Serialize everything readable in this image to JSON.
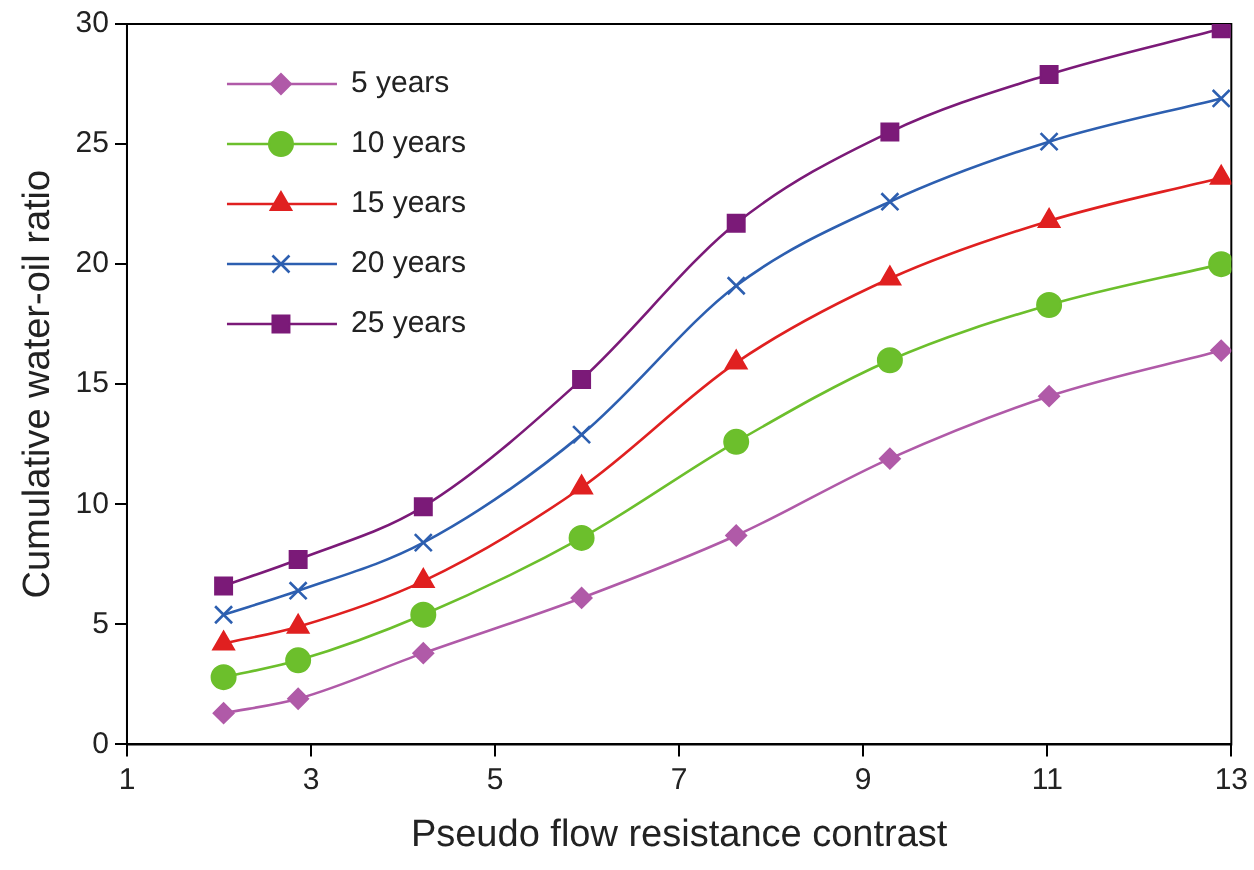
{
  "chart_data": {
    "type": "line",
    "xlabel": "Pseudo flow resistance contrast",
    "ylabel": "Cumulative water-oil ratio",
    "xlim": [
      1,
      13
    ],
    "xticks": [
      1,
      3,
      5,
      7,
      9,
      11,
      13
    ],
    "ylim": [
      0,
      30
    ],
    "yticks": [
      0,
      5,
      10,
      15,
      20,
      25,
      30
    ],
    "grid": false,
    "legend": "top left",
    "line_style": "solid",
    "x": [
      2.05,
      2.86,
      4.22,
      5.94,
      7.62,
      9.29,
      11.02,
      12.89
    ],
    "series": [
      {
        "name": "5 years",
        "color": "#b05aa8",
        "marker": "diamond",
        "values": [
          1.3,
          1.9,
          3.8,
          6.1,
          8.7,
          11.9,
          14.5,
          16.4
        ]
      },
      {
        "name": "10 years",
        "color": "#6cbf2c",
        "marker": "circle",
        "values": [
          2.8,
          3.5,
          5.4,
          8.6,
          12.6,
          16.0,
          18.3,
          20.0
        ]
      },
      {
        "name": "15 years",
        "color": "#e02020",
        "marker": "triangle",
        "values": [
          4.2,
          4.9,
          6.8,
          10.7,
          15.9,
          19.4,
          21.8,
          23.6
        ]
      },
      {
        "name": "20 years",
        "color": "#2d5fb0",
        "marker": "cross",
        "values": [
          5.4,
          6.4,
          8.4,
          12.9,
          19.1,
          22.6,
          25.1,
          26.9
        ]
      },
      {
        "name": "25 years",
        "color": "#7b1a78",
        "marker": "square",
        "values": [
          6.6,
          7.7,
          9.9,
          15.2,
          21.7,
          25.5,
          27.9,
          29.8
        ]
      }
    ]
  }
}
